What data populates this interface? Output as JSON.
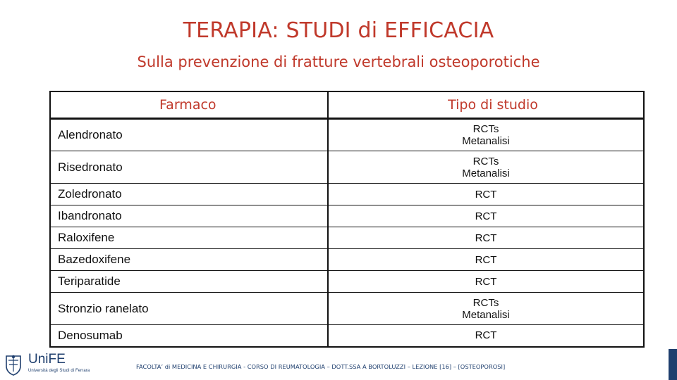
{
  "title": "TERAPIA: STUDI di EFFICACIA",
  "subtitle": "Sulla prevenzione di fratture vertebrali osteoporotiche",
  "table": {
    "headers": {
      "drug": "Farmaco",
      "type": "Tipo di studio"
    },
    "rows": [
      {
        "drug": "Alendronato",
        "type": [
          "RCTs",
          "Metanalisi"
        ]
      },
      {
        "drug": "Risedronato",
        "type": [
          "RCTs",
          "Metanalisi"
        ]
      },
      {
        "drug": "Zoledronato",
        "type": [
          "RCT"
        ]
      },
      {
        "drug": "Ibandronato",
        "type": [
          "RCT"
        ]
      },
      {
        "drug": "Raloxifene",
        "type": [
          "RCT"
        ]
      },
      {
        "drug": "Bazedoxifene",
        "type": [
          "RCT"
        ]
      },
      {
        "drug": "Teriparatide",
        "type": [
          "RCT"
        ]
      },
      {
        "drug": "Stronzio ranelato",
        "type": [
          "RCTs",
          "Metanalisi"
        ]
      },
      {
        "drug": "Denosumab",
        "type": [
          "RCT"
        ]
      }
    ]
  },
  "logo": {
    "name": "UniFE",
    "subtitle": "Università degli Studi di Ferrara",
    "icon": "university-crest-icon"
  },
  "footer": "FACOLTA’ di MEDICINA E CHIRURGIA - CORSO DI REUMATOLOGIA – DOTT.SSA A BORTOLUZZI – LEZIONE [16] – [OSTEOPOROSI]",
  "colors": {
    "accent": "#c0392b",
    "brand": "#1f3f6e"
  }
}
